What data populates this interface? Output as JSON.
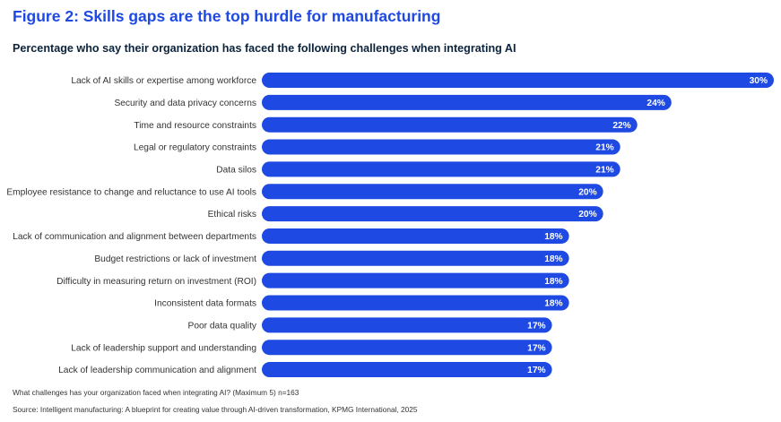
{
  "figure": {
    "title": "Figure 2: Skills gaps are the top hurdle for manufacturing",
    "subtitle": "Percentage who say their organization has faced the following challenges when integrating AI",
    "question_note": "What challenges has your organization faced when integrating AI? (Maximum 5) n=163",
    "source_note": "Source: Intelligent manufacturing: A blueprint for creating value through AI-driven transformation, KPMG International, 2025"
  },
  "colors": {
    "bar": "#1e49e2",
    "title": "#1e49e2",
    "subtitle": "#0c233c",
    "label": "#333333",
    "value_label": "#ffffff"
  },
  "chart_data": {
    "type": "bar",
    "orientation": "horizontal",
    "value_format": "percent",
    "xlim": [
      0,
      30
    ],
    "grid": false,
    "categories": [
      "Lack of AI skills or expertise among workforce",
      "Security and data privacy concerns",
      "Time and resource constraints",
      "Legal or regulatory constraints",
      "Data silos",
      "Employee resistance to change and reluctance to use AI tools",
      "Ethical risks",
      "Lack of communication and alignment between departments",
      "Budget restrictions or lack of investment",
      "Difficulty in measuring return on investment (ROI)",
      "Inconsistent data formats",
      "Poor data quality",
      "Lack of leadership support and understanding",
      "Lack of leadership communication and alignment"
    ],
    "values": [
      30,
      24,
      22,
      21,
      21,
      20,
      20,
      18,
      18,
      18,
      18,
      17,
      17,
      17
    ],
    "value_labels": [
      "30%",
      "24%",
      "22%",
      "21%",
      "21%",
      "20%",
      "20%",
      "18%",
      "18%",
      "18%",
      "18%",
      "17%",
      "17%",
      "17%"
    ]
  }
}
